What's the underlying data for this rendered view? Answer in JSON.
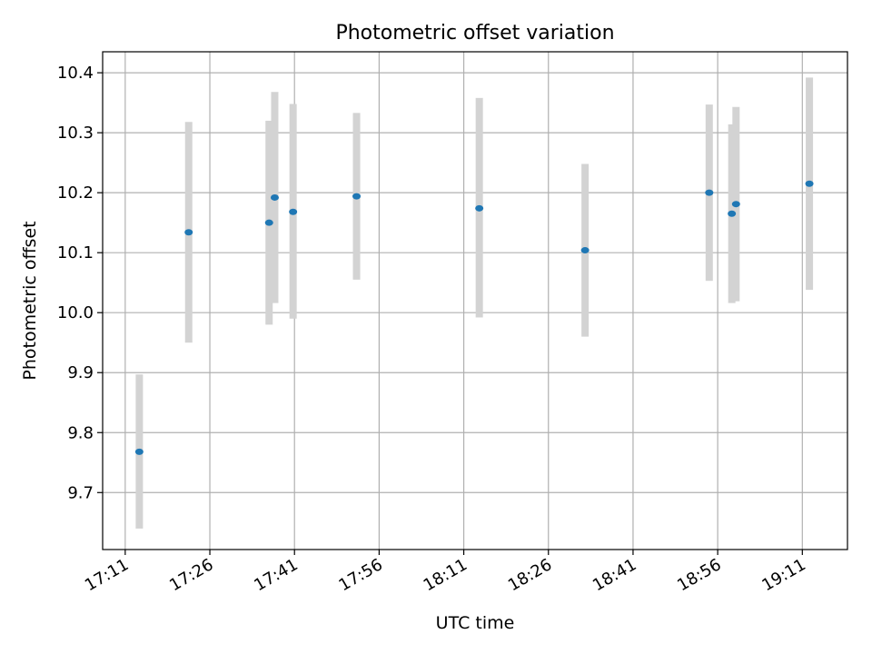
{
  "chart_data": {
    "type": "scatter",
    "title": "Photometric offset variation",
    "xlabel": "UTC time",
    "ylabel": "Photometric offset",
    "xlim": [
      "17:07",
      "19:19"
    ],
    "ylim": [
      9.605,
      10.435
    ],
    "x_ticks": [
      "17:11",
      "17:26",
      "17:41",
      "17:56",
      "18:11",
      "18:26",
      "18:41",
      "18:56",
      "19:11"
    ],
    "y_ticks": [
      9.7,
      9.8,
      9.9,
      10.0,
      10.1,
      10.2,
      10.3,
      10.4
    ],
    "grid": true,
    "marker_color": "#1f77b4",
    "errorbar_color": "#d3d3d3",
    "points": [
      {
        "time": "17:13:30",
        "y": 9.768,
        "y_low": 9.64,
        "y_high": 9.897
      },
      {
        "time": "17:22:15",
        "y": 10.134,
        "y_low": 9.95,
        "y_high": 10.318
      },
      {
        "time": "17:36:30",
        "y": 10.15,
        "y_low": 9.98,
        "y_high": 10.32
      },
      {
        "time": "17:37:30",
        "y": 10.192,
        "y_low": 10.016,
        "y_high": 10.368
      },
      {
        "time": "17:40:45",
        "y": 10.168,
        "y_low": 9.99,
        "y_high": 10.348
      },
      {
        "time": "17:52:00",
        "y": 10.194,
        "y_low": 10.055,
        "y_high": 10.333
      },
      {
        "time": "18:13:45",
        "y": 10.174,
        "y_low": 9.992,
        "y_high": 10.358
      },
      {
        "time": "18:32:30",
        "y": 10.104,
        "y_low": 9.96,
        "y_high": 10.248
      },
      {
        "time": "18:54:30",
        "y": 10.2,
        "y_low": 10.053,
        "y_high": 10.347
      },
      {
        "time": "18:58:30",
        "y": 10.165,
        "y_low": 10.016,
        "y_high": 10.314
      },
      {
        "time": "18:59:15",
        "y": 10.181,
        "y_low": 10.019,
        "y_high": 10.343
      },
      {
        "time": "19:12:15",
        "y": 10.215,
        "y_low": 10.038,
        "y_high": 10.392
      }
    ]
  }
}
